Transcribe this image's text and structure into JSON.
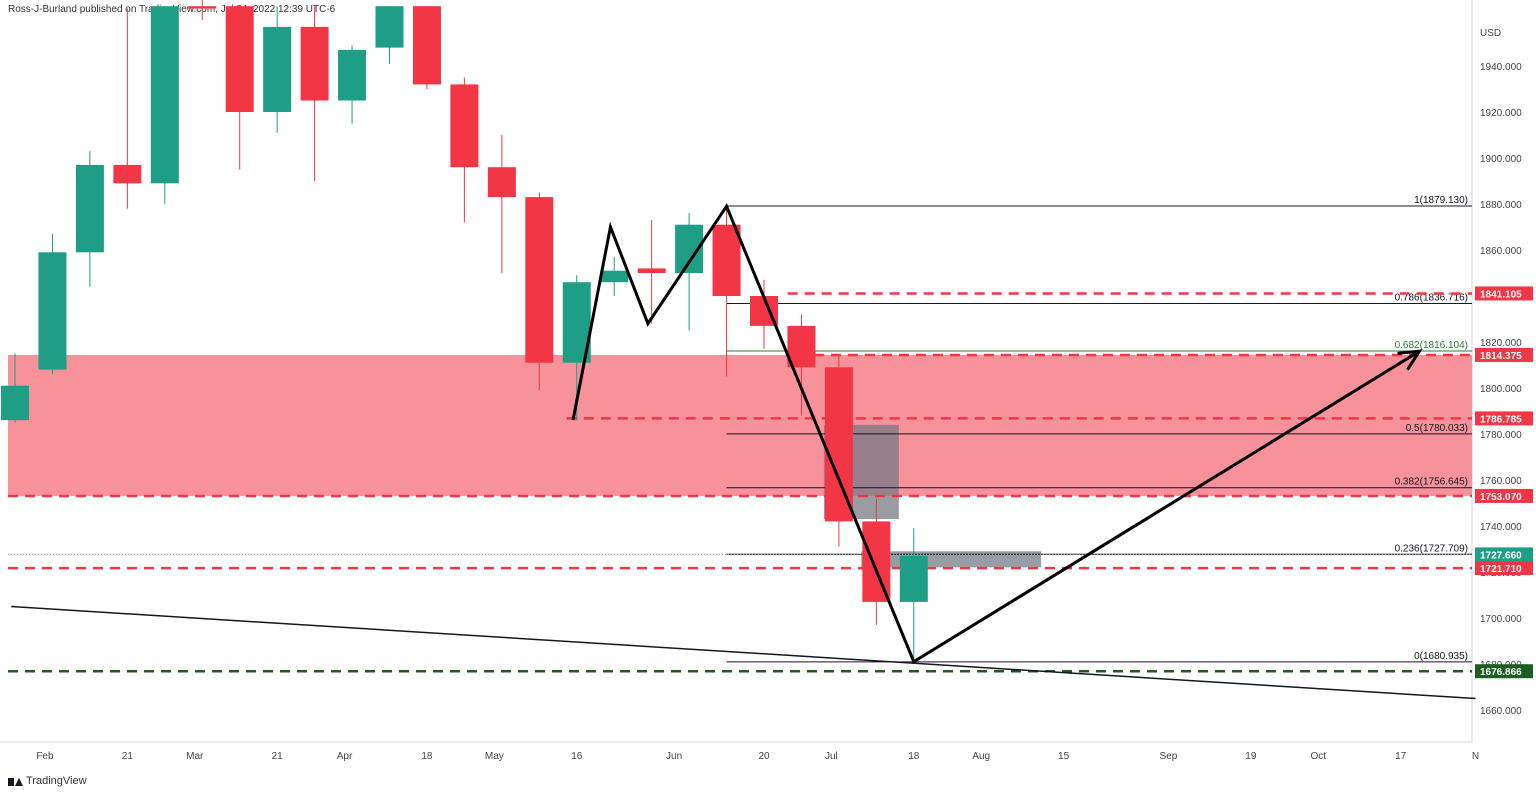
{
  "header": {
    "publisher": "Ross-J-Burland published on TradingView.com, Jul 24, 2022 12:39 UTC-6"
  },
  "footer": {
    "brand": "TradingView"
  },
  "colors": {
    "up": "#26a69a",
    "up_body": "#1e9e84",
    "down": "#f23645",
    "zone": "#f7919a",
    "support_dash": "#1b5e20",
    "grey_zone": "#787b86",
    "text": "#131722",
    "axis_text": "#444444"
  },
  "chart_data": {
    "type": "candlestick",
    "title": "",
    "currency": "USD",
    "ylim": [
      1652,
      1965
    ],
    "y_ticks": [
      1660,
      1680,
      1700,
      1720,
      1740,
      1760,
      1780,
      1800,
      1820,
      1840,
      1860,
      1880,
      1900,
      1920,
      1940
    ],
    "y_tick_labels": [
      "1660.000",
      "1680.000",
      "1700.000",
      "1720.000",
      "1740.000",
      "1760.000",
      "1780.000",
      "1800.000",
      "1820.000",
      "1840.000",
      "1860.000",
      "1880.000",
      "1900.000",
      "1920.000",
      "1940.000"
    ],
    "x_axis_labels": [
      {
        "label": "Feb",
        "week": 0.8
      },
      {
        "label": "21",
        "week": 3
      },
      {
        "label": "Mar",
        "week": 4.8
      },
      {
        "label": "21",
        "week": 7
      },
      {
        "label": "Apr",
        "week": 8.8
      },
      {
        "label": "18",
        "week": 11
      },
      {
        "label": "May",
        "week": 12.8
      },
      {
        "label": "16",
        "week": 15
      },
      {
        "label": "Jun",
        "week": 17.6
      },
      {
        "label": "20",
        "week": 20
      },
      {
        "label": "Jul",
        "week": 21.8
      },
      {
        "label": "18",
        "week": 24
      },
      {
        "label": "Aug",
        "week": 25.8
      },
      {
        "label": "15",
        "week": 28
      },
      {
        "label": "Sep",
        "week": 30.8
      },
      {
        "label": "19",
        "week": 33
      },
      {
        "label": "Oct",
        "week": 34.8
      },
      {
        "label": "17",
        "week": 37
      },
      {
        "label": "N",
        "week": 39
      }
    ],
    "candles": [
      {
        "week": 0,
        "open": 1786,
        "high": 1815,
        "low": 1785,
        "close": 1801
      },
      {
        "week": 1,
        "open": 1808,
        "high": 1867,
        "low": 1806,
        "close": 1859
      },
      {
        "week": 2,
        "open": 1859,
        "high": 1903,
        "low": 1844,
        "close": 1897
      },
      {
        "week": 3,
        "open": 1897,
        "high": 1965,
        "low": 1878,
        "close": 1889
      },
      {
        "week": 4,
        "open": 1889,
        "high": 1966,
        "low": 1880,
        "close": 1966
      },
      {
        "week": 5,
        "open": 1966,
        "high": 1970,
        "low": 1960,
        "close": 1965
      },
      {
        "week": 6,
        "open": 1966,
        "high": 1966,
        "low": 1895,
        "close": 1920
      },
      {
        "week": 7,
        "open": 1920,
        "high": 1966,
        "low": 1911,
        "close": 1957
      },
      {
        "week": 8,
        "open": 1957,
        "high": 1966,
        "low": 1890,
        "close": 1925
      },
      {
        "week": 9,
        "open": 1925,
        "high": 1949,
        "low": 1915,
        "close": 1947
      },
      {
        "week": 10,
        "open": 1948,
        "high": 1966,
        "low": 1941,
        "close": 1966
      },
      {
        "week": 11,
        "open": 1966,
        "high": 1966,
        "low": 1930,
        "close": 1932
      },
      {
        "week": 12,
        "open": 1932,
        "high": 1935,
        "low": 1872,
        "close": 1896
      },
      {
        "week": 13,
        "open": 1896,
        "high": 1910,
        "low": 1850,
        "close": 1883
      },
      {
        "week": 14,
        "open": 1883,
        "high": 1885,
        "low": 1799,
        "close": 1811
      },
      {
        "week": 15,
        "open": 1811,
        "high": 1849,
        "low": 1786,
        "close": 1846
      },
      {
        "week": 16,
        "open": 1846,
        "high": 1857,
        "low": 1840,
        "close": 1851
      },
      {
        "week": 17,
        "open": 1852,
        "high": 1873,
        "low": 1828,
        "close": 1850
      },
      {
        "week": 18,
        "open": 1850,
        "high": 1876,
        "low": 1825,
        "close": 1871
      },
      {
        "week": 19,
        "open": 1871,
        "high": 1879,
        "low": 1805,
        "close": 1840
      },
      {
        "week": 20,
        "open": 1840,
        "high": 1847,
        "low": 1817,
        "close": 1827
      },
      {
        "week": 21,
        "open": 1827,
        "high": 1832,
        "low": 1788,
        "close": 1809
      },
      {
        "week": 22,
        "open": 1809,
        "high": 1814,
        "low": 1731,
        "close": 1742
      },
      {
        "week": 23,
        "open": 1742,
        "high": 1752,
        "low": 1697,
        "close": 1707
      },
      {
        "week": 24,
        "open": 1707,
        "high": 1739,
        "low": 1681,
        "close": 1727
      }
    ],
    "resistance_zone": {
      "from": 1753.07,
      "to": 1814.375
    },
    "grey_zones": [
      {
        "week_from": 21.6,
        "week_to": 23.6,
        "from": 1743,
        "to": 1784
      },
      {
        "week_from": 22.6,
        "week_to": 27.4,
        "from": 1722,
        "to": 1729
      }
    ],
    "horizontal_levels": [
      {
        "label": "1841.105",
        "value": 1841.105,
        "style": "dashed-red",
        "week_from": 20.9
      },
      {
        "label": "1814.375",
        "value": 1814.375,
        "style": "dashed-red",
        "week_from": 21.6
      },
      {
        "label": "1786.785",
        "value": 1786.785,
        "style": "dashed-red",
        "week_from": 15
      },
      {
        "label": "1753.070",
        "value": 1753.07,
        "style": "dashed-red",
        "week_from": 0
      },
      {
        "label": "1721.710",
        "value": 1721.71,
        "style": "dashed-red",
        "week_from": 0
      },
      {
        "label": "1676.866",
        "value": 1676.866,
        "style": "dashed-green",
        "week_from": 0
      },
      {
        "label": "1727.660",
        "value": 1727.66,
        "style": "dotted-grey",
        "week_from": 0
      }
    ],
    "fibonacci": {
      "week_from": 19,
      "levels": [
        {
          "label": "1(1879.130)",
          "value": 1879.13
        },
        {
          "label": "0.786(1836.716)",
          "value": 1836.716
        },
        {
          "label": "0.682(1816.104)",
          "value": 1816.104,
          "color": "#2e7d32"
        },
        {
          "label": "0.5(1780.033)",
          "value": 1780.033
        },
        {
          "label": "0.382(1756.645)",
          "value": 1756.645
        },
        {
          "label": "0.236(1727.709)",
          "value": 1727.709
        },
        {
          "label": "0(1680.935)",
          "value": 1680.935
        }
      ]
    },
    "trendline": {
      "from": {
        "week": -0.1,
        "value": 1705
      },
      "to": {
        "week": 39,
        "value": 1665
      }
    },
    "pattern_line": [
      {
        "week": 14.9,
        "value": 1786
      },
      {
        "week": 15.9,
        "value": 1870
      },
      {
        "week": 16.9,
        "value": 1828
      },
      {
        "week": 19,
        "value": 1879
      },
      {
        "week": 24,
        "value": 1681
      },
      {
        "week": 37.5,
        "value": 1816
      }
    ]
  }
}
